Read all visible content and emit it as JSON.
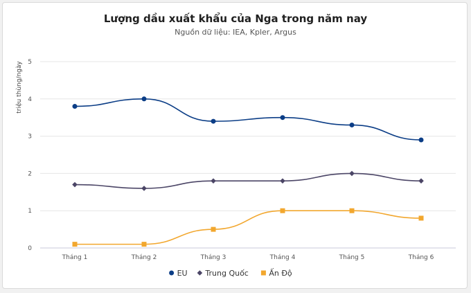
{
  "chart_data": {
    "type": "line",
    "title": "Lượng dầu xuất khẩu của Nga trong năm nay",
    "subtitle": "Nguồn dữ liệu: IEA, Kpler, Argus",
    "xlabel": "",
    "ylabel": "triệu thùng/ngày",
    "categories": [
      "Tháng 1",
      "Tháng 2",
      "Tháng 3",
      "Tháng 4",
      "Tháng 5",
      "Tháng 6"
    ],
    "ylim": [
      0,
      5
    ],
    "yticks": [
      "0",
      "1",
      "2",
      "3",
      "4",
      "5"
    ],
    "grid": true,
    "legend_position": "bottom",
    "series": [
      {
        "name": "EU",
        "values": [
          3.8,
          4.0,
          3.4,
          3.5,
          3.3,
          2.9
        ],
        "color": "#0b3d86",
        "marker": "circle"
      },
      {
        "name": "Trung Quốc",
        "values": [
          1.7,
          1.6,
          1.8,
          1.8,
          2.0,
          1.8
        ],
        "color": "#4b4566",
        "marker": "diamond"
      },
      {
        "name": "Ấn Độ",
        "values": [
          0.1,
          0.1,
          0.5,
          1.0,
          1.0,
          0.8
        ],
        "color": "#f2a72e",
        "marker": "square"
      }
    ]
  }
}
